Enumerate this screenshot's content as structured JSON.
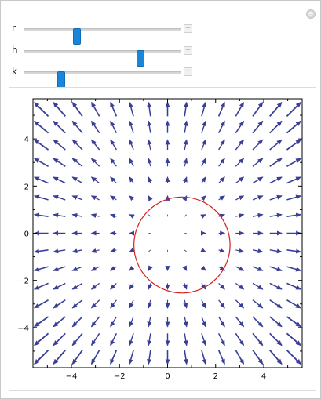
{
  "controls": {
    "close_glyph": "⊖",
    "sliders": [
      {
        "name": "r",
        "label": "r",
        "position_fraction": 0.34
      },
      {
        "name": "h",
        "label": "h",
        "position_fraction": 0.74
      },
      {
        "name": "k",
        "label": "k",
        "position_fraction": 0.24
      }
    ],
    "plus_glyph": "+"
  },
  "plot": {
    "x_ticks": [
      "−4",
      "−2",
      "0",
      "2",
      "4"
    ],
    "y_ticks": [
      "4",
      "2",
      "0",
      "−2",
      "−4"
    ],
    "arrow_color": "#3a3f96",
    "circle_color": "#d42020"
  },
  "chart_data": {
    "type": "vector_field",
    "title": "",
    "xlabel": "",
    "ylabel": "",
    "xlim": [
      -5.6,
      5.6
    ],
    "ylim": [
      -5.7,
      5.7
    ],
    "x_ticks": [
      -4,
      -2,
      0,
      2,
      4
    ],
    "y_ticks": [
      -4,
      -2,
      0,
      2,
      4
    ],
    "field": {
      "vx": "x",
      "vy": "y",
      "grid_step": 0.75,
      "grid_min": -5.25,
      "grid_max": 5.25
    },
    "circle": {
      "center": [
        0.6,
        -0.5
      ],
      "radius": 2.0
    }
  }
}
